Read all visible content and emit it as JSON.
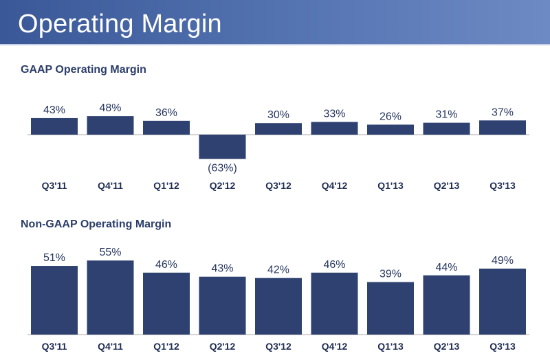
{
  "page": {
    "title": "Operating Margin"
  },
  "colors": {
    "bar": "#2e4170",
    "title_bar": "#4a68a8",
    "heading": "#2b3d6a"
  },
  "chart_data": [
    {
      "type": "bar",
      "title": "GAAP Operating Margin",
      "categories": [
        "Q3'11",
        "Q4'11",
        "Q1'12",
        "Q2'12",
        "Q3'12",
        "Q4'12",
        "Q1'13",
        "Q2'13",
        "Q3'13"
      ],
      "values": [
        43,
        48,
        36,
        -63,
        30,
        33,
        26,
        31,
        37
      ],
      "value_labels": [
        "43%",
        "48%",
        "36%",
        "(63%)",
        "30%",
        "33%",
        "26%",
        "31%",
        "37%"
      ],
      "ylim": [
        -70,
        55
      ],
      "grid": false
    },
    {
      "type": "bar",
      "title": "Non-GAAP Operating Margin",
      "categories": [
        "Q3'11",
        "Q4'11",
        "Q1'12",
        "Q2'12",
        "Q3'12",
        "Q4'12",
        "Q1'13",
        "Q2'13",
        "Q3'13"
      ],
      "values": [
        51,
        55,
        46,
        43,
        42,
        46,
        39,
        44,
        49
      ],
      "value_labels": [
        "51%",
        "55%",
        "46%",
        "43%",
        "42%",
        "46%",
        "39%",
        "44%",
        "49%"
      ],
      "ylim": [
        0,
        60
      ],
      "grid": false
    }
  ]
}
